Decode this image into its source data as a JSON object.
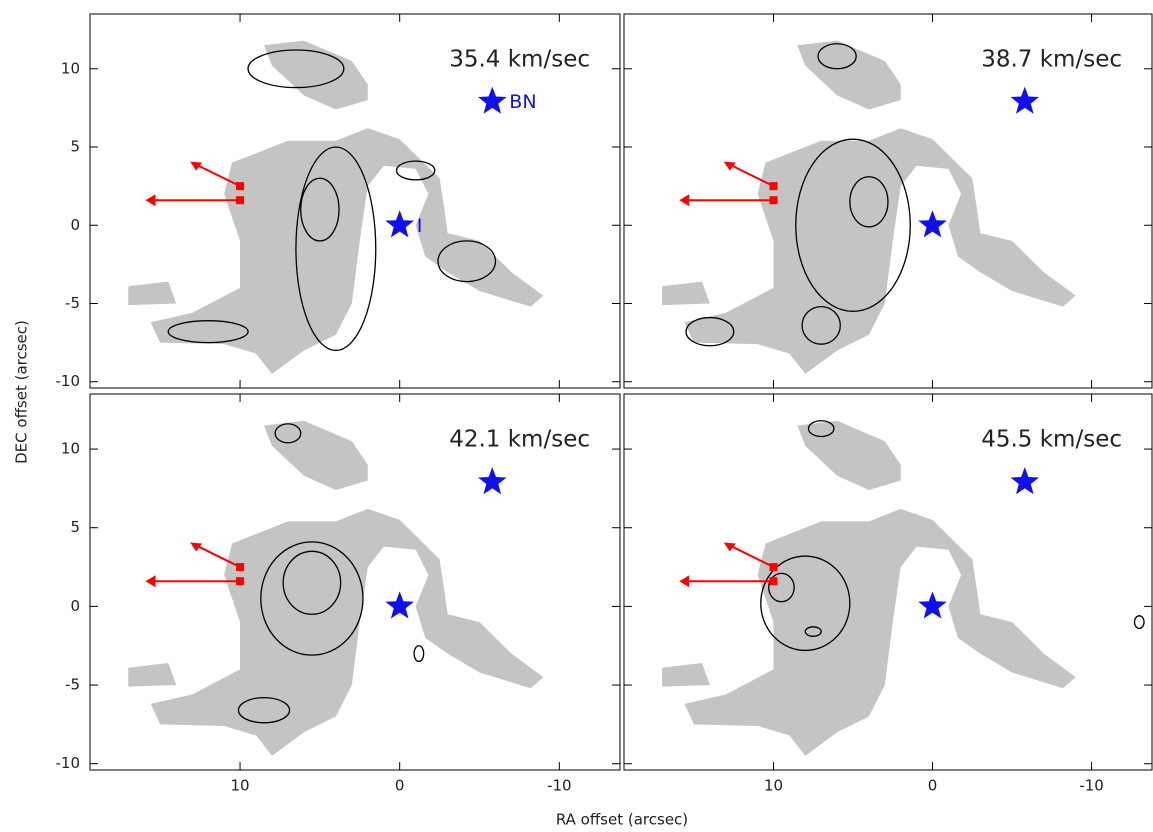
{
  "chart_data": [
    {
      "type": "contour",
      "title": "35.4  km/sec",
      "ylabel": "DEC offset (arcsec)",
      "xlim": [
        19.4,
        -13.8
      ],
      "ylim": [
        -10.4,
        13.5
      ],
      "xticks": [
        10,
        0,
        -10
      ],
      "yticks": [
        -10,
        -5,
        0,
        5,
        10
      ],
      "markers": [
        {
          "x": -5.8,
          "y": 7.9,
          "label": "BN"
        },
        {
          "x": 0,
          "y": 0,
          "label": "I"
        }
      ],
      "marker_color": "#1010ee"
    },
    {
      "type": "contour",
      "title": "38.7  km/sec",
      "xlim": [
        19.4,
        -13.8
      ],
      "ylim": [
        -10.4,
        13.5
      ],
      "xticks": [
        10,
        0,
        -10
      ],
      "yticks": [
        -10,
        -5,
        0,
        5,
        10
      ],
      "markers": [
        {
          "x": -5.8,
          "y": 7.9
        },
        {
          "x": 0,
          "y": 0
        }
      ],
      "marker_color": "#1010ee"
    },
    {
      "type": "contour",
      "title": "42.1  km/sec",
      "xlabel": "RA offset (arcsec)",
      "xlim": [
        19.4,
        -13.8
      ],
      "ylim": [
        -10.4,
        13.5
      ],
      "xticks": [
        10,
        0,
        -10
      ],
      "yticks": [
        -10,
        -5,
        0,
        5,
        10
      ],
      "markers": [
        {
          "x": -5.8,
          "y": 7.9
        },
        {
          "x": 0,
          "y": 0
        }
      ],
      "marker_color": "#1010ee"
    },
    {
      "type": "contour",
      "title": "45.5  km/sec",
      "xlim": [
        19.4,
        -13.8
      ],
      "ylim": [
        -10.4,
        13.5
      ],
      "xticks": [
        10,
        0,
        -10
      ],
      "yticks": [
        -10,
        -5,
        0,
        5,
        10
      ],
      "markers": [
        {
          "x": -5.8,
          "y": 7.9
        },
        {
          "x": 0,
          "y": 0
        }
      ],
      "marker_color": "#1010ee"
    }
  ]
}
